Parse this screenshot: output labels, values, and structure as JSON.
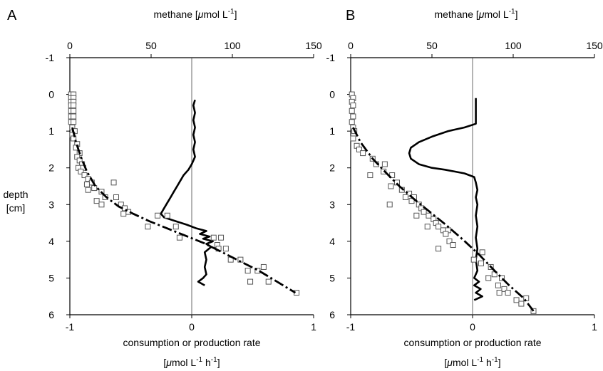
{
  "chart_data": [
    {
      "type": "scatter",
      "panel": "A",
      "top_axis": {
        "label_prefix": "methane [",
        "label_mu": "μ",
        "label_mid": "mol L",
        "label_sup": "-1",
        "label_suffix": "]",
        "ticks": [
          0,
          50,
          100,
          150
        ],
        "range": [
          0,
          150
        ]
      },
      "bottom_axis": {
        "label": "consumption or production rate",
        "unit_mu": "μ",
        "unit_mid": "mol L",
        "unit_sup1": "-1",
        "unit_h": " h",
        "unit_sup2": "-1",
        "unit_close": "]",
        "ticks": [
          -1,
          0,
          1
        ],
        "range": [
          -1,
          1
        ]
      },
      "y_axis": {
        "label_line1": "depth",
        "label_line2": "[cm]",
        "ticks": [
          -1,
          0,
          1,
          2,
          3,
          4,
          5,
          6
        ],
        "range": [
          -1,
          6
        ],
        "inverted": true
      },
      "series": [
        {
          "kind": "methane_profile",
          "points": [
            [
              77,
              0.15
            ],
            [
              76,
              0.3
            ],
            [
              77,
              0.5
            ],
            [
              76,
              0.7
            ],
            [
              77,
              0.9
            ],
            [
              76,
              1.1
            ],
            [
              77,
              1.3
            ],
            [
              76,
              1.5
            ],
            [
              77,
              1.7
            ],
            [
              75,
              1.9
            ],
            [
              73,
              2.05
            ],
            [
              70,
              2.2
            ],
            [
              68,
              2.35
            ],
            [
              66,
              2.5
            ],
            [
              64,
              2.65
            ],
            [
              62,
              2.8
            ],
            [
              60,
              2.95
            ],
            [
              58,
              3.1
            ],
            [
              56,
              3.25
            ],
            [
              58,
              3.35
            ],
            [
              65,
              3.45
            ],
            [
              72,
              3.55
            ],
            [
              78,
              3.65
            ],
            [
              84,
              3.72
            ],
            [
              80,
              3.8
            ],
            [
              86,
              3.87
            ],
            [
              82,
              3.93
            ],
            [
              88,
              4.0
            ],
            [
              84,
              4.07
            ],
            [
              87,
              4.15
            ],
            [
              83,
              4.3
            ],
            [
              84,
              4.5
            ],
            [
              83,
              4.7
            ],
            [
              84,
              4.9
            ],
            [
              82,
              5.0
            ],
            [
              79,
              5.1
            ],
            [
              83,
              5.2
            ]
          ]
        },
        {
          "kind": "rate_observed",
          "points": [
            [
              -0.99,
              0.0
            ],
            [
              -0.97,
              0.0
            ],
            [
              -0.99,
              0.1
            ],
            [
              -0.97,
              0.1
            ],
            [
              -0.99,
              0.2
            ],
            [
              -0.97,
              0.2
            ],
            [
              -0.99,
              0.3
            ],
            [
              -0.97,
              0.3
            ],
            [
              -0.99,
              0.45
            ],
            [
              -0.97,
              0.45
            ],
            [
              -0.99,
              0.6
            ],
            [
              -0.97,
              0.6
            ],
            [
              -0.99,
              0.75
            ],
            [
              -0.97,
              0.75
            ],
            [
              -0.98,
              0.9
            ],
            [
              -0.96,
              1.0
            ],
            [
              -0.98,
              1.1
            ],
            [
              -0.97,
              1.2
            ],
            [
              -0.94,
              1.35
            ],
            [
              -0.95,
              1.45
            ],
            [
              -0.92,
              1.6
            ],
            [
              -0.94,
              1.7
            ],
            [
              -0.92,
              1.8
            ],
            [
              -0.9,
              1.9
            ],
            [
              -0.93,
              2.0
            ],
            [
              -0.89,
              2.0
            ],
            [
              -0.91,
              2.1
            ],
            [
              -0.88,
              2.2
            ],
            [
              -0.85,
              2.3
            ],
            [
              -0.82,
              2.4
            ],
            [
              -0.86,
              2.45
            ],
            [
              -0.8,
              2.55
            ],
            [
              -0.85,
              2.6
            ],
            [
              -0.74,
              2.65
            ],
            [
              -0.64,
              2.4
            ],
            [
              -0.71,
              2.8
            ],
            [
              -0.78,
              2.9
            ],
            [
              -0.62,
              2.8
            ],
            [
              -0.74,
              3.0
            ],
            [
              -0.58,
              3.0
            ],
            [
              -0.55,
              3.1
            ],
            [
              -0.52,
              3.2
            ],
            [
              -0.56,
              3.25
            ],
            [
              -0.36,
              3.6
            ],
            [
              -0.28,
              3.3
            ],
            [
              -0.2,
              3.3
            ],
            [
              -0.13,
              3.6
            ],
            [
              -0.1,
              3.9
            ],
            [
              0.18,
              3.9
            ],
            [
              0.24,
              3.9
            ],
            [
              0.21,
              4.1
            ],
            [
              0.28,
              4.2
            ],
            [
              0.22,
              4.2
            ],
            [
              0.32,
              4.5
            ],
            [
              0.4,
              4.5
            ],
            [
              0.46,
              4.8
            ],
            [
              0.54,
              4.8
            ],
            [
              0.59,
              4.7
            ],
            [
              0.48,
              5.1
            ],
            [
              0.63,
              5.1
            ],
            [
              0.86,
              5.4
            ]
          ]
        },
        {
          "kind": "rate_model",
          "points": [
            [
              -0.98,
              0.9
            ],
            [
              -0.95,
              1.3
            ],
            [
              -0.91,
              1.7
            ],
            [
              -0.86,
              2.1
            ],
            [
              -0.79,
              2.5
            ],
            [
              -0.7,
              2.8
            ],
            [
              -0.6,
              3.05
            ],
            [
              -0.48,
              3.25
            ],
            [
              -0.35,
              3.45
            ],
            [
              -0.2,
              3.65
            ],
            [
              -0.05,
              3.85
            ],
            [
              0.1,
              4.05
            ],
            [
              0.25,
              4.3
            ],
            [
              0.4,
              4.55
            ],
            [
              0.55,
              4.8
            ],
            [
              0.7,
              5.1
            ],
            [
              0.85,
              5.4
            ]
          ]
        }
      ]
    },
    {
      "type": "scatter",
      "panel": "B",
      "top_axis": {
        "label_prefix": "methane [",
        "label_mu": "μ",
        "label_mid": "mol L",
        "label_sup": "-1",
        "label_suffix": "]",
        "ticks": [
          0,
          50,
          100,
          150
        ],
        "range": [
          0,
          150
        ]
      },
      "bottom_axis": {
        "label": "consumption or production rate",
        "unit_mu": "μ",
        "unit_mid": "mol L",
        "unit_sup1": "-1",
        "unit_h": " h",
        "unit_sup2": "-1",
        "unit_close": "]",
        "ticks": [
          -1,
          0,
          1
        ],
        "range": [
          -1,
          1
        ]
      },
      "y_axis": {
        "ticks": [
          -1,
          0,
          1,
          2,
          3,
          4,
          5,
          6
        ],
        "range": [
          -1,
          6
        ],
        "inverted": true
      },
      "series": [
        {
          "kind": "methane_profile",
          "points": [
            [
              77,
              0.1
            ],
            [
              77,
              0.8
            ],
            [
              70,
              0.9
            ],
            [
              60,
              1.0
            ],
            [
              50,
              1.15
            ],
            [
              42,
              1.3
            ],
            [
              37,
              1.45
            ],
            [
              36,
              1.6
            ],
            [
              37,
              1.75
            ],
            [
              42,
              1.9
            ],
            [
              50,
              2.0
            ],
            [
              58,
              2.05
            ],
            [
              64,
              2.1
            ],
            [
              70,
              2.15
            ],
            [
              76,
              2.25
            ],
            [
              77,
              2.4
            ],
            [
              78,
              2.6
            ],
            [
              77,
              2.8
            ],
            [
              78,
              3.0
            ],
            [
              77,
              3.3
            ],
            [
              78,
              3.6
            ],
            [
              77,
              3.9
            ],
            [
              78,
              4.2
            ],
            [
              77,
              4.5
            ],
            [
              78,
              4.8
            ],
            [
              76,
              5.0
            ],
            [
              79,
              5.1
            ],
            [
              76,
              5.2
            ],
            [
              80,
              5.3
            ],
            [
              77,
              5.4
            ],
            [
              81,
              5.5
            ],
            [
              76,
              5.6
            ]
          ]
        },
        {
          "kind": "rate_observed",
          "points": [
            [
              -0.99,
              0.0
            ],
            [
              -0.98,
              0.1
            ],
            [
              -0.99,
              0.2
            ],
            [
              -0.98,
              0.3
            ],
            [
              -0.99,
              0.45
            ],
            [
              -0.98,
              0.6
            ],
            [
              -0.99,
              0.75
            ],
            [
              -0.98,
              0.9
            ],
            [
              -0.97,
              1.0
            ],
            [
              -0.98,
              1.2
            ],
            [
              -0.95,
              1.4
            ],
            [
              -0.93,
              1.5
            ],
            [
              -0.9,
              1.6
            ],
            [
              -0.82,
              1.75
            ],
            [
              -0.79,
              1.9
            ],
            [
              -0.72,
              1.9
            ],
            [
              -0.73,
              2.1
            ],
            [
              -0.84,
              2.2
            ],
            [
              -0.66,
              2.2
            ],
            [
              -0.62,
              2.4
            ],
            [
              -0.67,
              2.5
            ],
            [
              -0.58,
              2.6
            ],
            [
              -0.52,
              2.7
            ],
            [
              -0.55,
              2.8
            ],
            [
              -0.48,
              2.8
            ],
            [
              -0.5,
              2.9
            ],
            [
              -0.44,
              3.0
            ],
            [
              -0.68,
              3.0
            ],
            [
              -0.42,
              3.1
            ],
            [
              -0.4,
              3.2
            ],
            [
              -0.46,
              3.3
            ],
            [
              -0.36,
              3.3
            ],
            [
              -0.32,
              3.4
            ],
            [
              -0.3,
              3.5
            ],
            [
              -0.37,
              3.6
            ],
            [
              -0.28,
              3.6
            ],
            [
              -0.24,
              3.7
            ],
            [
              -0.2,
              3.7
            ],
            [
              -0.22,
              3.8
            ],
            [
              -0.19,
              4.0
            ],
            [
              -0.16,
              4.1
            ],
            [
              -0.28,
              4.2
            ],
            [
              0.08,
              4.3
            ],
            [
              0.01,
              4.5
            ],
            [
              0.07,
              4.6
            ],
            [
              0.15,
              4.7
            ],
            [
              0.18,
              4.9
            ],
            [
              0.13,
              5.0
            ],
            [
              0.24,
              5.0
            ],
            [
              0.21,
              5.2
            ],
            [
              0.26,
              5.3
            ],
            [
              0.22,
              5.4
            ],
            [
              0.29,
              5.4
            ],
            [
              0.36,
              5.6
            ],
            [
              0.44,
              5.55
            ],
            [
              0.4,
              5.7
            ],
            [
              0.5,
              5.9
            ]
          ]
        },
        {
          "kind": "rate_model",
          "points": [
            [
              -0.98,
              0.9
            ],
            [
              -0.92,
              1.3
            ],
            [
              -0.82,
              1.75
            ],
            [
              -0.72,
              2.1
            ],
            [
              -0.6,
              2.5
            ],
            [
              -0.48,
              2.85
            ],
            [
              -0.35,
              3.2
            ],
            [
              -0.22,
              3.55
            ],
            [
              -0.08,
              3.95
            ],
            [
              0.05,
              4.35
            ],
            [
              0.18,
              4.8
            ],
            [
              0.3,
              5.2
            ],
            [
              0.42,
              5.55
            ],
            [
              0.5,
              5.9
            ]
          ]
        }
      ]
    }
  ]
}
